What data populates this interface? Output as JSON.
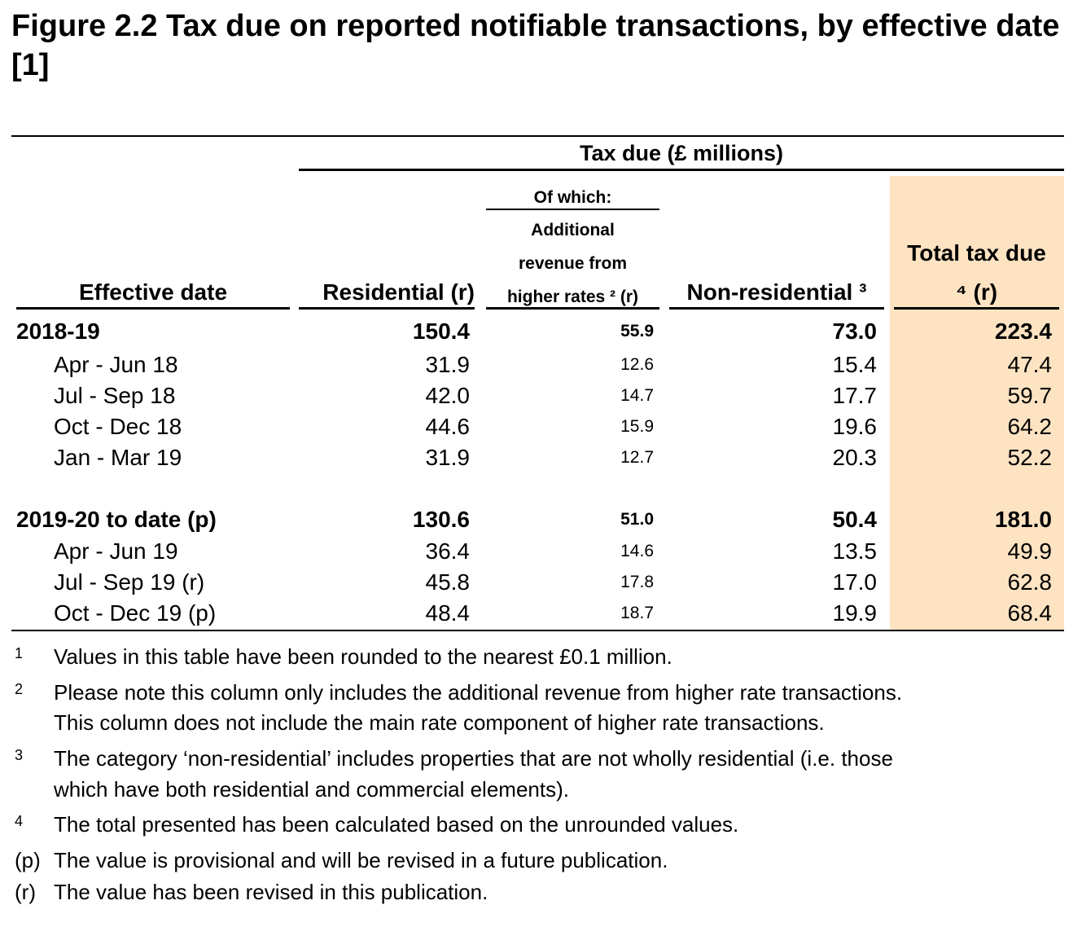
{
  "title": "Figure 2.2  Tax due on reported notifiable transactions, by effective date [1]",
  "header": {
    "group": "Tax due (£ millions)",
    "of_which": "Of which:",
    "additional": "Additional",
    "revenue_from": "revenue from",
    "higher_rates": "higher rates ² (r)",
    "effective_date": "Effective date",
    "residential": "Residential (r)",
    "non_residential": "Non-residential ³",
    "total_line1": "Total tax due",
    "total_line2": "⁴ (r)"
  },
  "highlight_color": "#fde3c2",
  "rows": [
    {
      "label": "2018-19",
      "residential": "150.4",
      "additional": "55.9",
      "non_residential": "73.0",
      "total": "223.4"
    },
    {
      "label": "Apr - Jun 18",
      "residential": "31.9",
      "additional": "12.6",
      "non_residential": "15.4",
      "total": "47.4"
    },
    {
      "label": "Jul - Sep 18",
      "residential": "42.0",
      "additional": "14.7",
      "non_residential": "17.7",
      "total": "59.7"
    },
    {
      "label": "Oct - Dec 18",
      "residential": "44.6",
      "additional": "15.9",
      "non_residential": "19.6",
      "total": "64.2"
    },
    {
      "label": "Jan - Mar 19",
      "residential": "31.9",
      "additional": "12.7",
      "non_residential": "20.3",
      "total": "52.2"
    },
    {
      "label": "2019-20 to date (p)",
      "residential": "130.6",
      "additional": "51.0",
      "non_residential": "50.4",
      "total": "181.0"
    },
    {
      "label": "Apr - Jun 19",
      "residential": "36.4",
      "additional": "14.6",
      "non_residential": "13.5",
      "total": "49.9"
    },
    {
      "label": "Jul - Sep 19 (r)",
      "residential": "45.8",
      "additional": "17.8",
      "non_residential": "17.0",
      "total": "62.8"
    },
    {
      "label": "Oct - Dec 19 (p)",
      "residential": "48.4",
      "additional": "18.7",
      "non_residential": "19.9",
      "total": "68.4"
    }
  ],
  "notes": [
    {
      "marker": "1",
      "text": "Values in this table have been rounded to the nearest £0.1 million."
    },
    {
      "marker": "2",
      "line1": "Please note this column only includes the additional revenue from higher rate transactions.",
      "line2": "This column does not include the main rate component of higher rate transactions."
    },
    {
      "marker": "3",
      "line1": "The category ‘non-residential’ includes properties that are not wholly residential (i.e. those",
      "line2": "which have both residential and commercial elements)."
    },
    {
      "marker": "4",
      "text": "The total presented has been calculated based on the unrounded values."
    },
    {
      "marker": "(p)",
      "text": "The value is provisional and will be revised in a future publication."
    },
    {
      "marker": "(r)",
      "text": "The value has been revised in this publication."
    }
  ]
}
